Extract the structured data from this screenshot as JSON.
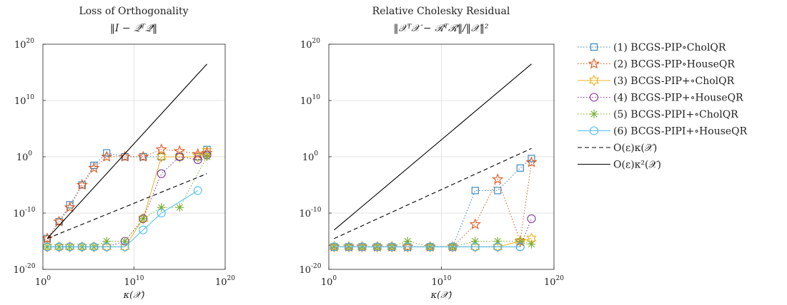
{
  "figure": {
    "legend": {
      "placement": "right",
      "entries": [
        {
          "label": "(1) BCGS-PIP∘CholQR",
          "color": "#2e7fb8",
          "marker": "square",
          "dash": "dotted"
        },
        {
          "label": "(2) BCGS-PIP∘HouseQR",
          "color": "#e0561d",
          "marker": "star",
          "dash": "dotted"
        },
        {
          "label": "(3) BCGS-PIP+∘CholQR",
          "color": "#eab31f",
          "marker": "hexagram",
          "dash": "solid"
        },
        {
          "label": "(4) BCGS-PIP+∘HouseQR",
          "color": "#7e3296",
          "marker": "circle",
          "dash": "dotted"
        },
        {
          "label": "(5) BCGS-PIPI+∘CholQR",
          "color": "#77ac30",
          "marker": "asterisk",
          "dash": "dotted"
        },
        {
          "label": "(6) BCGS-PIPI+∘HouseQR",
          "color": "#4dbeee",
          "marker": "circle",
          "dash": "solid"
        },
        {
          "label": "O(ε)κ(𝒳)",
          "color": "#000000",
          "marker": "none",
          "dash": "dashed"
        },
        {
          "label": "O(ε)κ²(𝒳)",
          "color": "#000000",
          "marker": "none",
          "dash": "solid"
        }
      ]
    }
  },
  "chart_data": [
    {
      "type": "line",
      "title": "Loss of Orthogonality",
      "subtitle": "‖I − 𝒬̄ᵀ𝒬̄‖",
      "xlabel": "κ(𝒳)",
      "ylabel": "",
      "xscale": "log",
      "yscale": "log",
      "xlim": [
        1,
        1e+20
      ],
      "ylim": [
        1e-20,
        1e+20
      ],
      "xticks": [
        {
          "base": "10",
          "exp": "0"
        },
        {
          "base": "10",
          "exp": "10"
        },
        {
          "base": "10",
          "exp": "20"
        }
      ],
      "yticks": [
        {
          "base": "10",
          "exp": "-20"
        },
        {
          "base": "10",
          "exp": "-10"
        },
        {
          "base": "10",
          "exp": "0"
        },
        {
          "base": "10",
          "exp": "10"
        },
        {
          "base": "10",
          "exp": "20"
        }
      ],
      "grid": true,
      "x": [
        3,
        60,
        900,
        20000,
        400000,
        10000000.0,
        1000000000.0,
        100000000000.0,
        10000000000000.0,
        1000000000000000.0,
        1e+17,
        1e+18
      ],
      "series": [
        {
          "name": "(1) BCGS-PIP∘CholQR",
          "values": [
            3e-15,
            3e-12,
            3e-09,
            1e-05,
            0.03,
            5,
            1,
            1,
            1,
            1,
            1,
            20
          ]
        },
        {
          "name": "(2) BCGS-PIP∘HouseQR",
          "values": [
            3e-15,
            3e-12,
            1e-09,
            1e-05,
            0.01,
            1,
            1,
            1,
            20,
            10,
            3,
            5
          ]
        },
        {
          "name": "(3) BCGS-PIP+∘CholQR",
          "values": [
            1e-16,
            1e-16,
            1e-16,
            1e-16,
            1e-16,
            1e-16,
            1e-16,
            1e-11,
            1,
            1,
            1,
            10
          ]
        },
        {
          "name": "(4) BCGS-PIP+∘HouseQR",
          "values": [
            1e-16,
            1e-16,
            1e-16,
            1e-16,
            1e-16,
            1e-16,
            1e-15,
            1e-11,
            0.001,
            1,
            0.3,
            2
          ]
        },
        {
          "name": "(5) BCGS-PIPI+∘CholQR",
          "values": [
            1e-16,
            1e-16,
            1e-16,
            1e-16,
            1e-16,
            1e-15,
            1e-15,
            1e-11,
            1e-09,
            1e-09,
            null,
            1
          ]
        },
        {
          "name": "(6) BCGS-PIPI+∘HouseQR",
          "values": [
            1e-16,
            1e-16,
            1e-16,
            1e-16,
            1e-16,
            1e-16,
            1e-16,
            1e-13,
            1e-10,
            null,
            1e-06,
            null
          ]
        },
        {
          "name": "O(ε)κ(𝒳)",
          "values": [
            3e-15,
            null,
            null,
            null,
            null,
            null,
            null,
            null,
            null,
            null,
            null,
            0.001
          ]
        },
        {
          "name": "O(ε)κ²(𝒳)",
          "values": [
            3e-15,
            null,
            null,
            null,
            null,
            null,
            null,
            null,
            null,
            null,
            null,
            3e+16
          ]
        }
      ]
    },
    {
      "type": "line",
      "title": "Relative Cholesky Residual",
      "subtitle": "‖𝒳ᵀ𝒳 − ℛ̄ᵀℛ̄‖/‖𝒳‖²",
      "xlabel": "κ(𝒳)",
      "ylabel": "",
      "xscale": "log",
      "yscale": "log",
      "xlim": [
        1,
        1e+20
      ],
      "ylim": [
        1e-20,
        1e+20
      ],
      "xticks": [
        {
          "base": "10",
          "exp": "0"
        },
        {
          "base": "10",
          "exp": "10"
        },
        {
          "base": "10",
          "exp": "20"
        }
      ],
      "yticks": [
        {
          "base": "10",
          "exp": "-20"
        },
        {
          "base": "10",
          "exp": "-10"
        },
        {
          "base": "10",
          "exp": "0"
        },
        {
          "base": "10",
          "exp": "10"
        },
        {
          "base": "10",
          "exp": "20"
        }
      ],
      "grid": true,
      "x": [
        3,
        60,
        900,
        20000,
        400000,
        10000000.0,
        1000000000.0,
        100000000000.0,
        10000000000000.0,
        1000000000000000.0,
        1e+17,
        1e+18
      ],
      "series": [
        {
          "name": "(1) BCGS-PIP∘CholQR",
          "values": [
            1e-16,
            1e-16,
            1e-16,
            1e-16,
            1e-16,
            1e-16,
            1e-16,
            1e-16,
            1e-06,
            1e-06,
            0.01,
            0.5
          ]
        },
        {
          "name": "(2) BCGS-PIP∘HouseQR",
          "values": [
            1e-16,
            1e-16,
            1e-16,
            1e-16,
            1e-16,
            1e-16,
            1e-16,
            1e-16,
            1e-12,
            0.0001,
            1e-15,
            0.1
          ]
        },
        {
          "name": "(3) BCGS-PIP+∘CholQR",
          "values": [
            1e-16,
            1e-16,
            1e-16,
            1e-16,
            1e-16,
            1e-16,
            1e-16,
            1e-16,
            1e-16,
            1e-16,
            1e-15,
            3e-15
          ]
        },
        {
          "name": "(4) BCGS-PIP+∘HouseQR",
          "values": [
            1e-16,
            1e-16,
            1e-16,
            1e-16,
            1e-16,
            1e-16,
            1e-16,
            1e-16,
            1e-16,
            1e-16,
            1e-16,
            1e-11
          ]
        },
        {
          "name": "(5) BCGS-PIPI+∘CholQR",
          "values": [
            1e-16,
            1e-16,
            1e-16,
            1e-16,
            1e-16,
            1e-15,
            1e-16,
            1e-16,
            1e-15,
            1e-15,
            1e-15,
            3e-16
          ]
        },
        {
          "name": "(6) BCGS-PIPI+∘HouseQR",
          "values": [
            1e-16,
            1e-16,
            1e-16,
            1e-16,
            1e-16,
            1e-16,
            1e-16,
            1e-16,
            1e-16,
            1e-16,
            1e-16,
            null
          ]
        },
        {
          "name": "O(ε)κ(𝒳)",
          "values": [
            3e-15,
            null,
            null,
            null,
            null,
            null,
            null,
            null,
            null,
            null,
            null,
            30.0
          ]
        },
        {
          "name": "O(ε)κ²(𝒳)",
          "values": [
            1e-13,
            null,
            null,
            null,
            null,
            null,
            null,
            null,
            null,
            null,
            null,
            3e+16
          ]
        }
      ]
    }
  ]
}
